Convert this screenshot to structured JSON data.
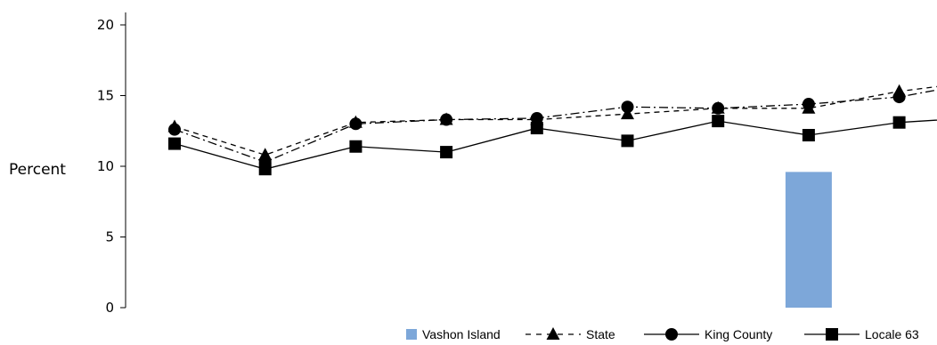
{
  "chart_data": {
    "type": "line",
    "ylabel": "Percent",
    "ylim": [
      0,
      20
    ],
    "yticks": [
      0,
      5,
      10,
      15,
      20
    ],
    "grid": false,
    "legend_position": "bottom-right",
    "x": [
      1,
      2,
      3,
      4,
      5,
      6,
      7,
      8,
      9,
      10
    ],
    "series": [
      {
        "name": "Vashon Island",
        "kind": "bar",
        "color": "#7da7d9",
        "values": [
          null,
          null,
          null,
          null,
          null,
          null,
          null,
          9.6,
          null,
          null
        ]
      },
      {
        "name": "State",
        "kind": "line",
        "marker": "triangle",
        "line_style": "dashed",
        "color": "#000000",
        "values": [
          12.8,
          10.8,
          13.1,
          13.3,
          13.3,
          13.7,
          14.1,
          14.1,
          15.3,
          16.1
        ]
      },
      {
        "name": "King County",
        "kind": "line",
        "marker": "circle",
        "line_style": "dashdot",
        "color": "#000000",
        "values": [
          12.6,
          10.3,
          13.0,
          13.3,
          13.4,
          14.2,
          14.1,
          14.4,
          14.9,
          16.1
        ]
      },
      {
        "name": "Locale 63",
        "kind": "line",
        "marker": "square",
        "line_style": "solid",
        "color": "#000000",
        "values": [
          11.6,
          9.8,
          11.4,
          11.0,
          12.7,
          11.8,
          13.2,
          12.2,
          13.1,
          13.5
        ]
      }
    ]
  }
}
